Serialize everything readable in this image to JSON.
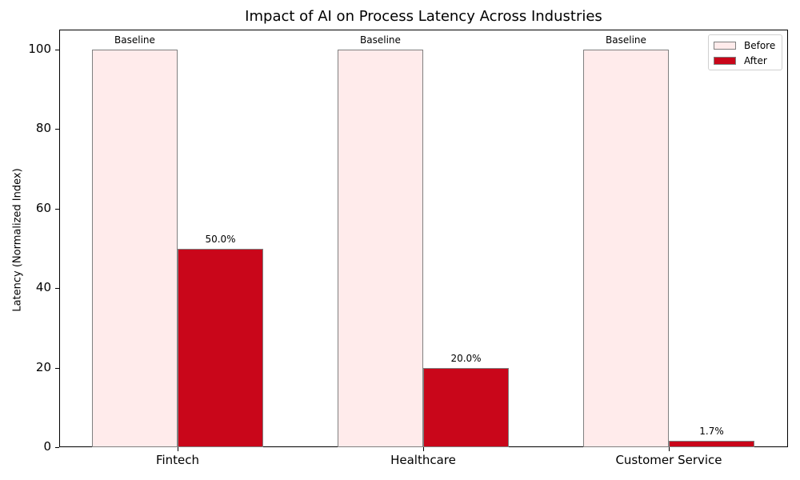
{
  "chart_data": {
    "type": "bar",
    "title": "Impact of AI on Process Latency Across Industries",
    "xlabel": "",
    "ylabel": "Latency (Normalized Index)",
    "categories": [
      "Fintech",
      "Healthcare",
      "Customer Service"
    ],
    "series": [
      {
        "name": "Before",
        "values": [
          100,
          100,
          100
        ],
        "color": "#ffebeb",
        "labels": [
          "Baseline",
          "Baseline",
          "Baseline"
        ]
      },
      {
        "name": "After",
        "values": [
          50,
          20,
          1.7
        ],
        "color": "#c9061a",
        "labels": [
          "50.0%",
          "20.0%",
          "1.7%"
        ]
      }
    ],
    "ylim": [
      0,
      105
    ],
    "yticks": [
      0,
      20,
      40,
      60,
      80,
      100
    ],
    "grid": false,
    "legend_position": "upper right"
  },
  "title": "Impact of AI on Process Latency Across Industries",
  "ylabel": "Latency (Normalized Index)",
  "yticks": [
    "0",
    "20",
    "40",
    "60",
    "80",
    "100"
  ],
  "categories": [
    "Fintech",
    "Healthcare",
    "Customer Service"
  ],
  "before_labels": [
    "Baseline",
    "Baseline",
    "Baseline"
  ],
  "after_labels": [
    "50.0%",
    "20.0%",
    "1.7%"
  ],
  "legend": {
    "before": "Before",
    "after": "After"
  }
}
